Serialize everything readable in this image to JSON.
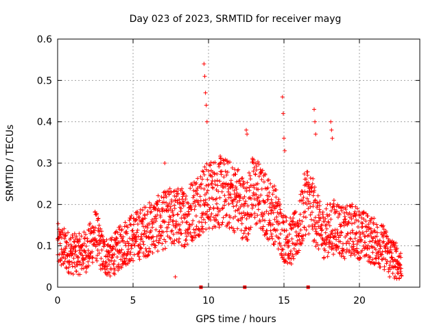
{
  "chart_data": {
    "type": "scatter",
    "title": "Day 023 of 2023, SRMTID for receiver mayg",
    "xlabel": "GPS time / hours",
    "ylabel": "SRMTID / TECUs",
    "xlim": [
      0,
      24
    ],
    "ylim": [
      0,
      0.6
    ],
    "x_ticks": [
      "0",
      "5",
      "10",
      "15",
      "20"
    ],
    "x_tick_values": [
      0,
      5,
      10,
      15,
      20
    ],
    "y_ticks": [
      "0",
      "0.1",
      "0.2",
      "0.3",
      "0.4",
      "0.5",
      "0.6"
    ],
    "y_tick_values": [
      0,
      0.1,
      0.2,
      0.3,
      0.4,
      0.5,
      0.6
    ],
    "grid": true,
    "marker": "+",
    "color": "#ff0000",
    "gap_markers_x": [
      9.5,
      12.4,
      16.6
    ],
    "trend": [
      [
        0.0,
        0.1
      ],
      [
        0.5,
        0.09
      ],
      [
        1.0,
        0.08
      ],
      [
        1.5,
        0.08
      ],
      [
        2.0,
        0.09
      ],
      [
        2.5,
        0.13
      ],
      [
        3.0,
        0.08
      ],
      [
        3.5,
        0.07
      ],
      [
        4.0,
        0.09
      ],
      [
        4.5,
        0.11
      ],
      [
        5.0,
        0.12
      ],
      [
        5.5,
        0.13
      ],
      [
        6.0,
        0.14
      ],
      [
        6.5,
        0.15
      ],
      [
        7.0,
        0.16
      ],
      [
        7.5,
        0.17
      ],
      [
        8.0,
        0.17
      ],
      [
        8.5,
        0.17
      ],
      [
        9.0,
        0.19
      ],
      [
        9.5,
        0.21
      ],
      [
        10.0,
        0.22
      ],
      [
        10.5,
        0.23
      ],
      [
        11.0,
        0.23
      ],
      [
        11.5,
        0.22
      ],
      [
        12.0,
        0.21
      ],
      [
        12.5,
        0.18
      ],
      [
        13.0,
        0.24
      ],
      [
        13.5,
        0.21
      ],
      [
        14.0,
        0.19
      ],
      [
        14.5,
        0.17
      ],
      [
        15.0,
        0.12
      ],
      [
        15.5,
        0.11
      ],
      [
        16.0,
        0.14
      ],
      [
        16.5,
        0.22
      ],
      [
        17.0,
        0.18
      ],
      [
        17.5,
        0.13
      ],
      [
        18.0,
        0.14
      ],
      [
        18.5,
        0.15
      ],
      [
        19.0,
        0.13
      ],
      [
        19.5,
        0.14
      ],
      [
        20.0,
        0.13
      ],
      [
        20.5,
        0.12
      ],
      [
        21.0,
        0.11
      ],
      [
        21.5,
        0.1
      ],
      [
        22.0,
        0.08
      ],
      [
        22.5,
        0.06
      ],
      [
        22.8,
        0.05
      ]
    ],
    "spikes": [
      [
        7.1,
        0.3
      ],
      [
        9.7,
        0.54
      ],
      [
        9.75,
        0.51
      ],
      [
        9.8,
        0.47
      ],
      [
        9.85,
        0.44
      ],
      [
        9.9,
        0.4
      ],
      [
        10.8,
        0.3
      ],
      [
        12.5,
        0.38
      ],
      [
        12.55,
        0.37
      ],
      [
        13.0,
        0.3
      ],
      [
        14.9,
        0.46
      ],
      [
        14.95,
        0.42
      ],
      [
        15.0,
        0.36
      ],
      [
        15.05,
        0.33
      ],
      [
        17.0,
        0.43
      ],
      [
        17.05,
        0.4
      ],
      [
        17.1,
        0.37
      ],
      [
        18.1,
        0.4
      ],
      [
        18.15,
        0.38
      ],
      [
        18.2,
        0.36
      ],
      [
        7.8,
        0.025
      ],
      [
        22.0,
        0.025
      ]
    ]
  }
}
